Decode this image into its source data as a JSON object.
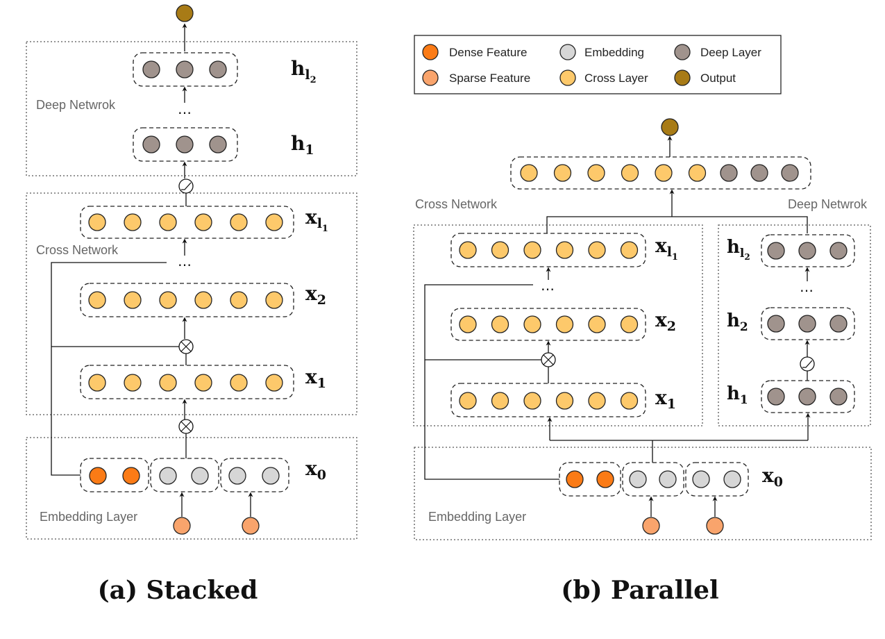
{
  "colors": {
    "dense": "#fb7b16",
    "sparse": "#f9a46c",
    "embedding": "#d6d6d6",
    "cross": "#fdc96b",
    "deep": "#a0938d",
    "output": "#a87b16"
  },
  "legend": {
    "dense": "Dense Feature",
    "sparse": "Sparse Feature",
    "embedding": "Embedding",
    "cross": "Cross Layer",
    "deep": "Deep Layer",
    "output": "Output"
  },
  "stacked": {
    "caption": "(a) Stacked",
    "deep_network": "Deep Netwrok",
    "cross_network": "Cross Network",
    "embedding_layer": "Embedding Layer",
    "h_l2": {
      "main": "h",
      "sub": "l",
      "subsub": "2"
    },
    "h_1": {
      "main": "h",
      "sub": "1"
    },
    "x_l1": {
      "main": "x",
      "sub": "l",
      "subsub": "1"
    },
    "x_2": {
      "main": "x",
      "sub": "2"
    },
    "x_1": {
      "main": "x",
      "sub": "1"
    },
    "x_0": {
      "main": "x",
      "sub": "0"
    }
  },
  "parallel": {
    "caption": "(b) Parallel",
    "cross_network": "Cross Network",
    "deep_network": "Deep Netwrok",
    "embedding_layer": "Embedding Layer",
    "x_l1": {
      "main": "x",
      "sub": "l",
      "subsub": "1"
    },
    "x_2": {
      "main": "x",
      "sub": "2"
    },
    "x_1": {
      "main": "x",
      "sub": "1"
    },
    "x_0": {
      "main": "x",
      "sub": "0"
    },
    "h_l2": {
      "main": "h",
      "sub": "l",
      "subsub": "2"
    },
    "h_2": {
      "main": "h",
      "sub": "2"
    },
    "h_1": {
      "main": "h",
      "sub": "1"
    }
  },
  "ellipsis": "…"
}
